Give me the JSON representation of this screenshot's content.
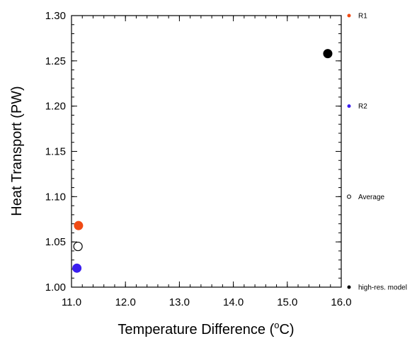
{
  "chart_data": {
    "type": "scatter",
    "xlabel": "Temperature Difference (",
    "xlabel_unit_super": "o",
    "xlabel_unit_tail": "C)",
    "ylabel": "Heat Transport (PW)",
    "xlim": [
      11.0,
      16.0
    ],
    "ylim": [
      1.0,
      1.3
    ],
    "x_ticks": [
      "11.0",
      "12.0",
      "13.0",
      "14.0",
      "15.0",
      "16.0"
    ],
    "y_ticks": [
      "1.00",
      "1.05",
      "1.10",
      "1.15",
      "1.20",
      "1.25",
      "1.30"
    ],
    "grid": false,
    "legend_position": "right",
    "series": [
      {
        "name": "R1",
        "x": 11.13,
        "y": 1.068,
        "color": "#f04a14",
        "filled": true
      },
      {
        "name": "R2",
        "x": 11.1,
        "y": 1.021,
        "color": "#3b1ef0",
        "filled": true
      },
      {
        "name": "Average",
        "x": 11.12,
        "y": 1.045,
        "color": "#000000",
        "filled": false
      },
      {
        "name": "high-res. model",
        "x": 15.75,
        "y": 1.258,
        "color": "#000000",
        "filled": true
      }
    ],
    "legend": [
      {
        "label": "R1",
        "y": 1.3
      },
      {
        "label": "R2",
        "y": 1.2
      },
      {
        "label": "Average",
        "y": 1.1
      },
      {
        "label": "high-res. model",
        "y": 1.0
      }
    ]
  }
}
